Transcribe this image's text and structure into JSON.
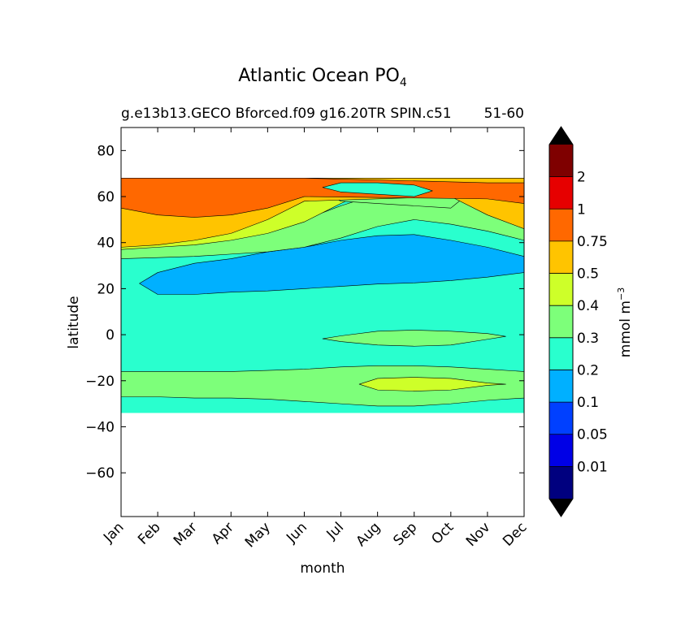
{
  "chart_data": {
    "type": "heatmap",
    "title": "Atlantic Ocean PO",
    "title_subscript": "4",
    "subtitle_left": "g.e13b13.GECO Bforced.f09 g16.20TR SPIN.c51",
    "subtitle_right": "51-60",
    "xlabel": "month",
    "ylabel": "latitude",
    "x_categories": [
      "Jan",
      "Feb",
      "Mar",
      "Apr",
      "May",
      "Jun",
      "Jul",
      "Aug",
      "Sep",
      "Oct",
      "Nov",
      "Dec"
    ],
    "y_ticks": [
      80,
      60,
      40,
      20,
      0,
      -20,
      -40,
      -60
    ],
    "y_tick_labels": [
      "80",
      "60",
      "40",
      "20",
      "0",
      "−20",
      "−40",
      "−60"
    ],
    "ylim": [
      -79,
      90
    ],
    "data_extent_lat": [
      -34,
      68
    ],
    "colorbar": {
      "label": "mmol m",
      "label_superscript": "−3",
      "levels": [
        0.01,
        0.05,
        0.1,
        0.2,
        0.3,
        0.4,
        0.5,
        0.75,
        1,
        2
      ],
      "level_labels": [
        "0.01",
        "0.05",
        "0.1",
        "0.2",
        "0.3",
        "0.4",
        "0.5",
        "0.75",
        "1",
        "2"
      ],
      "colors": [
        "#00007f",
        "#0000e6",
        "#0040ff",
        "#00b0ff",
        "#29ffce",
        "#7dff7a",
        "#ceff29",
        "#ffc400",
        "#ff6800",
        "#e60000",
        "#7f0000"
      ],
      "extend_low_color": "#000000",
      "extend_high_color": "#000000"
    },
    "bands": [
      {
        "value": 0.25,
        "region": "base"
      },
      {
        "value": 0.35,
        "lat_bottom": [
          -27,
          -27,
          -27.5,
          -27.5,
          -28,
          -29,
          -30,
          -31,
          -31,
          -30,
          -28.5,
          -27.5
        ],
        "lat_top": [
          -16,
          -16,
          -16,
          -16,
          -15.5,
          -15,
          -14,
          -13.5,
          -13.5,
          -14,
          -15,
          -16
        ]
      },
      {
        "value": 0.45,
        "lat_bottom": [
          null,
          null,
          null,
          null,
          null,
          null,
          null,
          -24,
          -24.5,
          -24,
          -22,
          null
        ],
        "lat_top": [
          null,
          null,
          null,
          null,
          null,
          null,
          null,
          -19,
          -18.5,
          -19,
          -21,
          null
        ]
      },
      {
        "value": 0.35,
        "lat_bottom": [
          null,
          null,
          null,
          null,
          null,
          null,
          -3,
          -4.5,
          -5,
          -4.5,
          -2,
          null
        ],
        "lat_top": [
          null,
          null,
          null,
          null,
          null,
          null,
          -0.5,
          1.5,
          2,
          1.5,
          0.5,
          null
        ]
      },
      {
        "value": 0.15,
        "lat_bottom": [
          null,
          17.5,
          17.5,
          18.5,
          19,
          20,
          21,
          22,
          22.5,
          23.5,
          25,
          27
        ],
        "lat_top": [
          null,
          27,
          31,
          33,
          36,
          38,
          41,
          43,
          43.5,
          41,
          38,
          34
        ]
      },
      {
        "value": 0.35,
        "lat_bottom": [
          33,
          33.5,
          34,
          35,
          36,
          38,
          42,
          47,
          50,
          48,
          45,
          41
        ],
        "lat_top": [
          39,
          40,
          41,
          43,
          46,
          50,
          56,
          61,
          64,
          66,
          68,
          68
        ]
      },
      {
        "value": 0.45,
        "lat_bottom": [
          37,
          38,
          39,
          41,
          44,
          49,
          57,
          64,
          66,
          67.5,
          68,
          68
        ],
        "lat_top": [
          68,
          68,
          68,
          68,
          68,
          68,
          68,
          68,
          68,
          68,
          68,
          68
        ]
      },
      {
        "value": 0.35,
        "lat_bottom": [
          null,
          null,
          null,
          null,
          null,
          null,
          58,
          57,
          56,
          55,
          null,
          null
        ],
        "lat_top": [
          null,
          null,
          null,
          null,
          null,
          null,
          67,
          68,
          68,
          68,
          null,
          null
        ]
      },
      {
        "value": 0.62,
        "lat_bottom": [
          38,
          39,
          41,
          44,
          50,
          58,
          null,
          null,
          null,
          60,
          52,
          46
        ],
        "lat_top": [
          68,
          68,
          68,
          68,
          68,
          68,
          null,
          null,
          null,
          68,
          68,
          68
        ]
      },
      {
        "value": 0.85,
        "lat_bottom": [
          55,
          52,
          51,
          52,
          55,
          60,
          null,
          null,
          null,
          null,
          59,
          57
        ],
        "lat_top": [
          68,
          68,
          68,
          68,
          68,
          68,
          null,
          null,
          null,
          null,
          66,
          66
        ]
      },
      {
        "value": 0.25,
        "lat_bottom": [
          null,
          null,
          null,
          null,
          null,
          null,
          62,
          61,
          60,
          null,
          null,
          null
        ],
        "lat_top": [
          null,
          null,
          null,
          null,
          null,
          null,
          66,
          66,
          65,
          null,
          null,
          null
        ]
      }
    ]
  }
}
